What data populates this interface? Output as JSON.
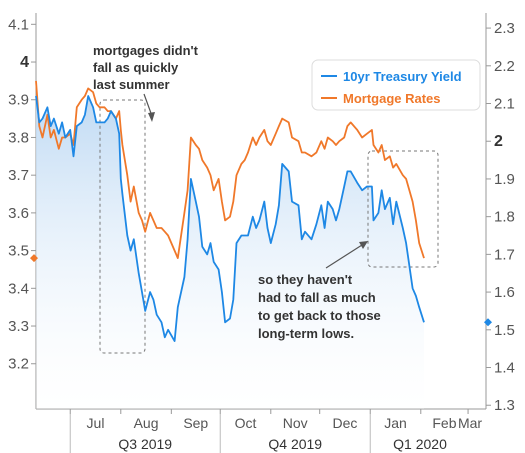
{
  "chart_data": {
    "type": "line",
    "title": "",
    "x_axis": {
      "months": [
        "Jul",
        "Aug",
        "Sep",
        "Oct",
        "Nov",
        "Dec",
        "Jan",
        "Feb",
        "Mar"
      ],
      "quarters": [
        "Q3 2019",
        "Q4 2019",
        "Q1 2020"
      ],
      "range": [
        "2019-06-10",
        "2020-03-12"
      ]
    },
    "y_left": {
      "ticks": [
        "3.2",
        "3.3",
        "3.4",
        "3.5",
        "3.6",
        "3.7",
        "3.8",
        "3.9",
        "4",
        "4.1"
      ],
      "bold": "4",
      "ylim": [
        3.08,
        4.13
      ]
    },
    "y_right": {
      "ticks": [
        "1.3",
        "1.4",
        "1.5",
        "1.6",
        "1.7",
        "1.8",
        "1.9",
        "2",
        "2.1",
        "2.2",
        "2.3"
      ],
      "bold": "2",
      "ylim": [
        1.29,
        2.34
      ]
    },
    "grid": false,
    "legend_position": "top-right",
    "series": [
      {
        "name": "10yr Treasury Yield",
        "color": "#1e88e5",
        "axis": "right",
        "points": [
          [
            "2019-06-10",
            2.12
          ],
          [
            "2019-06-12",
            2.05
          ],
          [
            "2019-06-14",
            2.06
          ],
          [
            "2019-06-17",
            2.09
          ],
          [
            "2019-06-19",
            2.04
          ],
          [
            "2019-06-21",
            2.06
          ],
          [
            "2019-06-24",
            2.02
          ],
          [
            "2019-06-26",
            2.05
          ],
          [
            "2019-06-28",
            2.01
          ],
          [
            "2019-07-01",
            2.03
          ],
          [
            "2019-07-03",
            1.96
          ],
          [
            "2019-07-05",
            2.04
          ],
          [
            "2019-07-08",
            2.05
          ],
          [
            "2019-07-10",
            2.07
          ],
          [
            "2019-07-12",
            2.12
          ],
          [
            "2019-07-15",
            2.09
          ],
          [
            "2019-07-17",
            2.05
          ],
          [
            "2019-07-19",
            2.05
          ],
          [
            "2019-07-22",
            2.05
          ],
          [
            "2019-07-24",
            2.06
          ],
          [
            "2019-07-26",
            2.08
          ],
          [
            "2019-07-29",
            2.06
          ],
          [
            "2019-07-31",
            2.02
          ],
          [
            "2019-08-01",
            1.9
          ],
          [
            "2019-08-02",
            1.86
          ],
          [
            "2019-08-05",
            1.75
          ],
          [
            "2019-08-07",
            1.71
          ],
          [
            "2019-08-09",
            1.74
          ],
          [
            "2019-08-12",
            1.65
          ],
          [
            "2019-08-14",
            1.6
          ],
          [
            "2019-08-16",
            1.55
          ],
          [
            "2019-08-19",
            1.6
          ],
          [
            "2019-08-21",
            1.58
          ],
          [
            "2019-08-23",
            1.54
          ],
          [
            "2019-08-26",
            1.52
          ],
          [
            "2019-08-28",
            1.48
          ],
          [
            "2019-08-30",
            1.5
          ],
          [
            "2019-09-03",
            1.47
          ],
          [
            "2019-09-05",
            1.56
          ],
          [
            "2019-09-09",
            1.64
          ],
          [
            "2019-09-11",
            1.74
          ],
          [
            "2019-09-13",
            1.9
          ],
          [
            "2019-09-16",
            1.84
          ],
          [
            "2019-09-18",
            1.8
          ],
          [
            "2019-09-20",
            1.72
          ],
          [
            "2019-09-23",
            1.7
          ],
          [
            "2019-09-25",
            1.73
          ],
          [
            "2019-09-27",
            1.68
          ],
          [
            "2019-09-30",
            1.66
          ],
          [
            "2019-10-02",
            1.6
          ],
          [
            "2019-10-04",
            1.52
          ],
          [
            "2019-10-07",
            1.53
          ],
          [
            "2019-10-09",
            1.58
          ],
          [
            "2019-10-11",
            1.73
          ],
          [
            "2019-10-14",
            1.75
          ],
          [
            "2019-10-16",
            1.75
          ],
          [
            "2019-10-18",
            1.75
          ],
          [
            "2019-10-21",
            1.8
          ],
          [
            "2019-10-23",
            1.77
          ],
          [
            "2019-10-25",
            1.79
          ],
          [
            "2019-10-28",
            1.84
          ],
          [
            "2019-10-30",
            1.77
          ],
          [
            "2019-11-01",
            1.73
          ],
          [
            "2019-11-04",
            1.78
          ],
          [
            "2019-11-06",
            1.83
          ],
          [
            "2019-11-08",
            1.94
          ],
          [
            "2019-11-12",
            1.92
          ],
          [
            "2019-11-14",
            1.84
          ],
          [
            "2019-11-18",
            1.83
          ],
          [
            "2019-11-20",
            1.74
          ],
          [
            "2019-11-22",
            1.76
          ],
          [
            "2019-11-26",
            1.74
          ],
          [
            "2019-11-29",
            1.78
          ],
          [
            "2019-12-02",
            1.83
          ],
          [
            "2019-12-04",
            1.77
          ],
          [
            "2019-12-06",
            1.84
          ],
          [
            "2019-12-09",
            1.82
          ],
          [
            "2019-12-11",
            1.79
          ],
          [
            "2019-12-13",
            1.82
          ],
          [
            "2019-12-16",
            1.88
          ],
          [
            "2019-12-18",
            1.92
          ],
          [
            "2019-12-20",
            1.92
          ],
          [
            "2019-12-24",
            1.89
          ],
          [
            "2019-12-27",
            1.87
          ],
          [
            "2019-12-30",
            1.88
          ],
          [
            "2020-01-02",
            1.88
          ],
          [
            "2020-01-03",
            1.79
          ],
          [
            "2020-01-06",
            1.81
          ],
          [
            "2020-01-08",
            1.87
          ],
          [
            "2020-01-10",
            1.82
          ],
          [
            "2020-01-13",
            1.85
          ],
          [
            "2020-01-15",
            1.78
          ],
          [
            "2020-01-17",
            1.84
          ],
          [
            "2020-01-21",
            1.77
          ],
          [
            "2020-01-23",
            1.73
          ],
          [
            "2020-01-27",
            1.61
          ],
          [
            "2020-01-29",
            1.59
          ],
          [
            "2020-01-31",
            1.56
          ],
          [
            "2020-02-03",
            1.52
          ]
        ]
      },
      {
        "name": "Mortgage Rates",
        "color": "#f0782a",
        "axis": "left",
        "points": [
          [
            "2019-06-10",
            3.95
          ],
          [
            "2019-06-12",
            3.83
          ],
          [
            "2019-06-14",
            3.8
          ],
          [
            "2019-06-17",
            3.86
          ],
          [
            "2019-06-19",
            3.8
          ],
          [
            "2019-06-21",
            3.82
          ],
          [
            "2019-06-24",
            3.77
          ],
          [
            "2019-06-26",
            3.8
          ],
          [
            "2019-06-28",
            3.8
          ],
          [
            "2019-07-01",
            3.81
          ],
          [
            "2019-07-03",
            3.78
          ],
          [
            "2019-07-05",
            3.88
          ],
          [
            "2019-07-08",
            3.9
          ],
          [
            "2019-07-10",
            3.91
          ],
          [
            "2019-07-12",
            3.93
          ],
          [
            "2019-07-15",
            3.92
          ],
          [
            "2019-07-17",
            3.89
          ],
          [
            "2019-07-19",
            3.88
          ],
          [
            "2019-07-22",
            3.88
          ],
          [
            "2019-07-24",
            3.87
          ],
          [
            "2019-07-26",
            3.87
          ],
          [
            "2019-07-29",
            3.85
          ],
          [
            "2019-07-31",
            3.87
          ],
          [
            "2019-08-01",
            3.82
          ],
          [
            "2019-08-02",
            3.78
          ],
          [
            "2019-08-05",
            3.7
          ],
          [
            "2019-08-07",
            3.63
          ],
          [
            "2019-08-09",
            3.67
          ],
          [
            "2019-08-12",
            3.6
          ],
          [
            "2019-08-14",
            3.58
          ],
          [
            "2019-08-16",
            3.55
          ],
          [
            "2019-08-19",
            3.6
          ],
          [
            "2019-08-21",
            3.58
          ],
          [
            "2019-08-23",
            3.56
          ],
          [
            "2019-08-26",
            3.56
          ],
          [
            "2019-08-28",
            3.55
          ],
          [
            "2019-08-30",
            3.54
          ],
          [
            "2019-09-03",
            3.5
          ],
          [
            "2019-09-05",
            3.48
          ],
          [
            "2019-09-09",
            3.6
          ],
          [
            "2019-09-11",
            3.66
          ],
          [
            "2019-09-13",
            3.8
          ],
          [
            "2019-09-16",
            3.78
          ],
          [
            "2019-09-18",
            3.77
          ],
          [
            "2019-09-20",
            3.74
          ],
          [
            "2019-09-23",
            3.72
          ],
          [
            "2019-09-25",
            3.7
          ],
          [
            "2019-09-27",
            3.66
          ],
          [
            "2019-09-30",
            3.69
          ],
          [
            "2019-10-02",
            3.63
          ],
          [
            "2019-10-04",
            3.58
          ],
          [
            "2019-10-07",
            3.59
          ],
          [
            "2019-10-09",
            3.63
          ],
          [
            "2019-10-11",
            3.7
          ],
          [
            "2019-10-14",
            3.73
          ],
          [
            "2019-10-16",
            3.74
          ],
          [
            "2019-10-18",
            3.76
          ],
          [
            "2019-10-21",
            3.8
          ],
          [
            "2019-10-23",
            3.78
          ],
          [
            "2019-10-25",
            3.8
          ],
          [
            "2019-10-28",
            3.82
          ],
          [
            "2019-10-30",
            3.79
          ],
          [
            "2019-11-01",
            3.78
          ],
          [
            "2019-11-04",
            3.81
          ],
          [
            "2019-11-06",
            3.83
          ],
          [
            "2019-11-08",
            3.85
          ],
          [
            "2019-11-12",
            3.84
          ],
          [
            "2019-11-14",
            3.8
          ],
          [
            "2019-11-18",
            3.79
          ],
          [
            "2019-11-20",
            3.76
          ],
          [
            "2019-11-22",
            3.76
          ],
          [
            "2019-11-26",
            3.75
          ],
          [
            "2019-11-29",
            3.76
          ],
          [
            "2019-12-02",
            3.79
          ],
          [
            "2019-12-04",
            3.77
          ],
          [
            "2019-12-06",
            3.8
          ],
          [
            "2019-12-09",
            3.79
          ],
          [
            "2019-12-11",
            3.78
          ],
          [
            "2019-12-13",
            3.79
          ],
          [
            "2019-12-16",
            3.8
          ],
          [
            "2019-12-18",
            3.83
          ],
          [
            "2019-12-20",
            3.84
          ],
          [
            "2019-12-24",
            3.82
          ],
          [
            "2019-12-27",
            3.8
          ],
          [
            "2019-12-30",
            3.81
          ],
          [
            "2020-01-02",
            3.82
          ],
          [
            "2020-01-03",
            3.78
          ],
          [
            "2020-01-06",
            3.76
          ],
          [
            "2020-01-08",
            3.78
          ],
          [
            "2020-01-10",
            3.74
          ],
          [
            "2020-01-13",
            3.75
          ],
          [
            "2020-01-15",
            3.72
          ],
          [
            "2020-01-17",
            3.73
          ],
          [
            "2020-01-21",
            3.7
          ],
          [
            "2020-01-23",
            3.69
          ],
          [
            "2020-01-27",
            3.63
          ],
          [
            "2020-01-29",
            3.58
          ],
          [
            "2020-01-31",
            3.52
          ],
          [
            "2020-02-03",
            3.48
          ]
        ]
      }
    ],
    "last_value_markers": [
      {
        "series": "Mortgage Rates",
        "axis": "left",
        "value": 3.48
      },
      {
        "series": "10yr Treasury Yield",
        "axis": "right",
        "value": 1.52
      }
    ],
    "annotations": [
      {
        "lines": [
          "mortgages didn't",
          "fall as quickly",
          "last summer"
        ]
      },
      {
        "lines": [
          "so they haven't",
          "had to fall as much",
          "to get back to those",
          "long-term lows."
        ]
      }
    ]
  }
}
